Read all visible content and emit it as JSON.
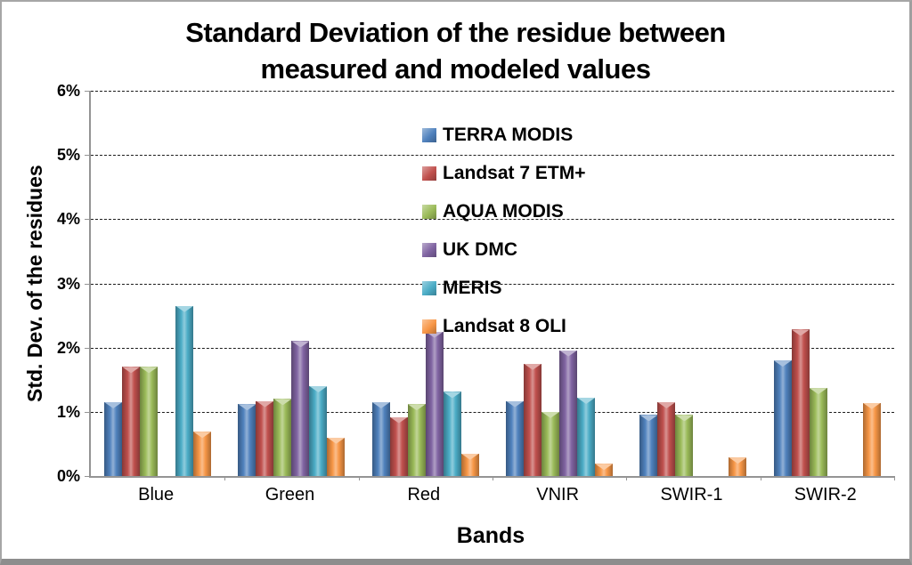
{
  "title": {
    "text": "Standard Deviation of the residue between measured and modeled values",
    "lines": [
      "Standard Deviation of the residue between",
      "measured and modeled values"
    ]
  },
  "chart_data": {
    "type": "bar",
    "title": "Standard Deviation of the residue between measured and modeled values",
    "xlabel": "Bands",
    "ylabel": "Std.  Dev. of the residues",
    "categories": [
      "Blue",
      "Green",
      "Red",
      "VNIR",
      "SWIR-1",
      "SWIR-2"
    ],
    "series": [
      {
        "name": "TERRA MODIS",
        "color": "#4F81BD",
        "values": [
          1.15,
          1.12,
          1.15,
          1.17,
          0.95,
          1.8
        ]
      },
      {
        "name": "Landsat 7 ETM+",
        "color": "#C0504D",
        "values": [
          1.7,
          1.17,
          0.92,
          1.75,
          1.15,
          2.28
        ]
      },
      {
        "name": "AQUA MODIS",
        "color": "#9BBB59",
        "values": [
          1.7,
          1.2,
          1.12,
          1.0,
          0.95,
          1.37
        ]
      },
      {
        "name": "UK DMC",
        "color": "#8064A2",
        "values": [
          0,
          2.1,
          2.25,
          1.96,
          0,
          0
        ]
      },
      {
        "name": "MERIS",
        "color": "#4BACC6",
        "values": [
          2.65,
          1.4,
          1.31,
          1.22,
          0,
          0
        ]
      },
      {
        "name": "Landsat 8 OLI",
        "color": "#F79646",
        "values": [
          0.69,
          0.6,
          0.35,
          0.19,
          0.29,
          1.14
        ]
      }
    ],
    "ylim": [
      0,
      6
    ],
    "yticks": [
      "0%",
      "1%",
      "2%",
      "3%",
      "4%",
      "5%",
      "6%"
    ],
    "grid": "horizontal-dashed",
    "legend_position": "inside-top-center",
    "axis_color": "#949494",
    "gridline_color": "#1c1c1c"
  }
}
